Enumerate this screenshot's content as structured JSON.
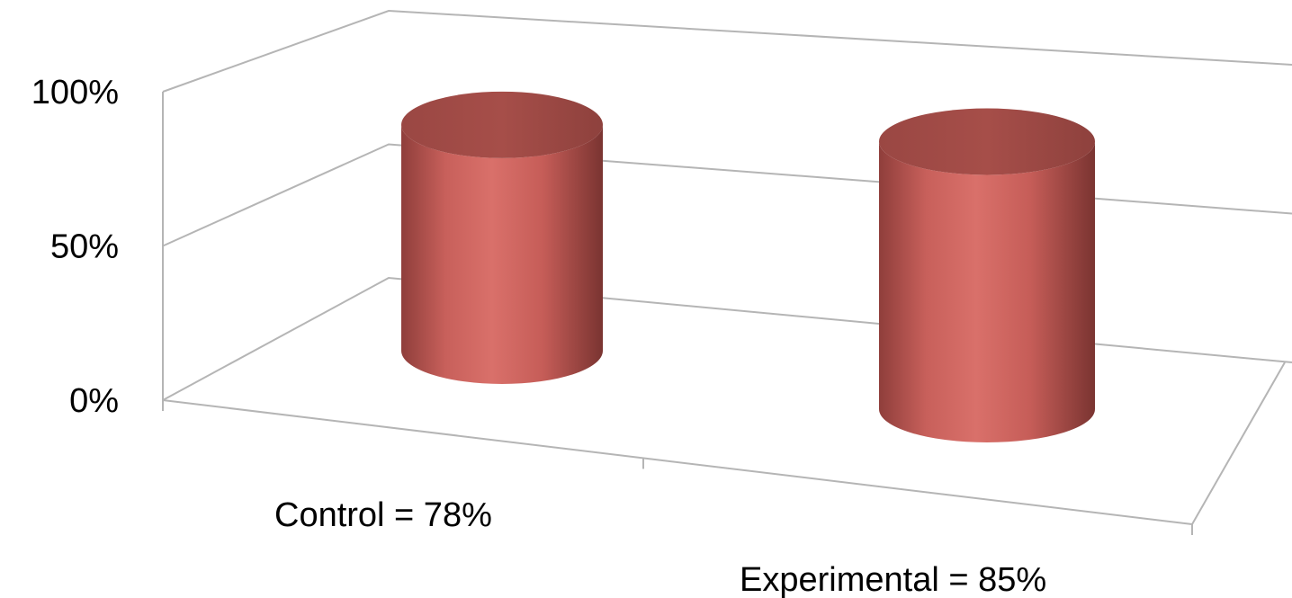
{
  "chart_data": {
    "type": "bar",
    "style": "3d-cylinder",
    "categories": [
      "Control = 78%",
      "Experimental = 85%"
    ],
    "values": [
      78,
      85
    ],
    "value_unit": "%",
    "ylim": [
      0,
      100
    ],
    "y_ticks": [
      0,
      50,
      100
    ],
    "y_tick_labels": [
      "0%",
      "50%",
      "100%"
    ],
    "title": "",
    "xlabel": "",
    "ylabel": "",
    "grid": true,
    "legend": "none",
    "bar_color": "#c0504d"
  }
}
